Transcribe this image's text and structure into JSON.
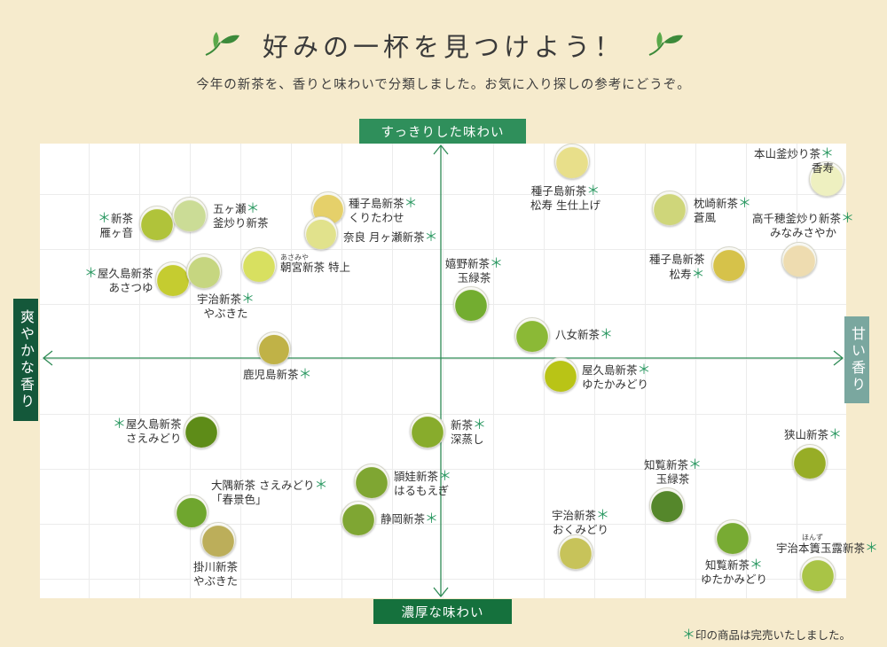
{
  "header": {
    "title": "好みの一杯を見つけよう！",
    "subtitle": "今年の新茶を、香りと味わいで分類しました。お気に入り探しの参考にどうぞ。"
  },
  "axes": {
    "top": "すっきりした味わい",
    "bottom": "濃厚な味わい",
    "left": "爽やかな香り",
    "right": "甘い香り"
  },
  "colors": {
    "axis_line": "#2e8a55",
    "star": "#2e9a64",
    "background": "#f6ebcd"
  },
  "teas": [
    {
      "id": "hon-yama",
      "lines": [
        "本山釜炒り茶",
        "香寿"
      ],
      "star": true,
      "color": "#eef0c0"
    },
    {
      "id": "tanegashima-seijo",
      "lines": [
        "種子島新茶",
        "松寿 生仕上げ"
      ],
      "star": true,
      "color": "#e8df8a"
    },
    {
      "id": "makurazaki",
      "lines": [
        "枕崎新茶",
        "蒼風"
      ],
      "star": true,
      "color": "#cfd67a"
    },
    {
      "id": "takachiho",
      "lines": [
        "高千穂釜炒り新茶",
        "みなみさやか"
      ],
      "star": true,
      "color": "#eedcb0"
    },
    {
      "id": "tanegashima-shoju",
      "lines": [
        "種子島新茶",
        "松寿"
      ],
      "star": true,
      "color": "#d6c24a"
    },
    {
      "id": "shincha-kariganeon",
      "lines": [
        "新茶",
        "雁ヶ音"
      ],
      "star": true,
      "color": "#b0c33a"
    },
    {
      "id": "gokase",
      "lines": [
        "五ヶ瀬",
        "釜炒り新茶"
      ],
      "star": true,
      "color": "#cbdc96"
    },
    {
      "id": "tanegashima-kuri",
      "lines": [
        "種子島新茶",
        "くりたわせ"
      ],
      "star": true,
      "color": "#e5d06a"
    },
    {
      "id": "nara",
      "lines": [
        "奈良 月ヶ瀬新茶"
      ],
      "star": true,
      "color": "#e1e28c"
    },
    {
      "id": "yakushima-asatsuyu",
      "lines": [
        "屋久島新茶",
        "あさつゆ"
      ],
      "star": true,
      "color": "#c5cc30"
    },
    {
      "id": "uji-yabukita",
      "lines": [
        "宇治新茶",
        "やぶきた"
      ],
      "star": true,
      "color": "#c6d680"
    },
    {
      "id": "asamiya",
      "lines": [
        "朝宮新茶 特上"
      ],
      "star": false,
      "ruby": "あさみや",
      "color": "#d8e060"
    },
    {
      "id": "ureshino",
      "lines": [
        "嬉野新茶",
        "玉緑茶"
      ],
      "star": true,
      "color": "#73ad30"
    },
    {
      "id": "yame",
      "lines": [
        "八女新茶"
      ],
      "star": true,
      "color": "#8bb936"
    },
    {
      "id": "kagoshima",
      "lines": [
        "鹿児島新茶"
      ],
      "star": true,
      "color": "#c0b247"
    },
    {
      "id": "yakushima-yutaka",
      "lines": [
        "屋久島新茶",
        "ゆたかみどり"
      ],
      "star": true,
      "color": "#b9c416"
    },
    {
      "id": "yakushima-saemidori",
      "lines": [
        "屋久島新茶",
        "さえみどり"
      ],
      "star": true,
      "color": "#5e8c18"
    },
    {
      "id": "shincha-fukamushi",
      "lines": [
        "新茶",
        "深蒸し"
      ],
      "star": true,
      "color": "#88ac2c"
    },
    {
      "id": "sayama",
      "lines": [
        "狭山新茶"
      ],
      "star": true,
      "color": "#97ad26"
    },
    {
      "id": "chiran-tamaryokucha",
      "lines": [
        "知覧新茶",
        "玉緑茶"
      ],
      "star": true,
      "color": "#55872b"
    },
    {
      "id": "osumi",
      "lines": [
        "大隅新茶 さえみどり",
        "「春景色」"
      ],
      "star": true,
      "color": "#6fa62e"
    },
    {
      "id": "eiwa",
      "lines": [
        "頴娃新茶",
        "はるもえぎ"
      ],
      "star": true,
      "color": "#7fa632"
    },
    {
      "id": "shizuoka",
      "lines": [
        "静岡新茶"
      ],
      "star": true,
      "color": "#7fa633"
    },
    {
      "id": "uji-okumidori",
      "lines": [
        "宇治新茶",
        "おくみどり"
      ],
      "star": true,
      "color": "#c7c35a"
    },
    {
      "id": "chiran-yutaka",
      "lines": [
        "知覧新茶",
        "ゆたかみどり"
      ],
      "star": true,
      "color": "#78ab33"
    },
    {
      "id": "uji-hontamagyokuro",
      "lines": [
        "宇治本簀玉露新茶"
      ],
      "star": true,
      "ruby": "ほんず",
      "color": "#a9c446"
    },
    {
      "id": "kakegawa",
      "lines": [
        "掛川新茶",
        "やぶきた"
      ],
      "star": false,
      "color": "#bcae5a"
    }
  ],
  "footnote": {
    "star": "＊",
    "text": "印の商品は完売いたしました。"
  }
}
